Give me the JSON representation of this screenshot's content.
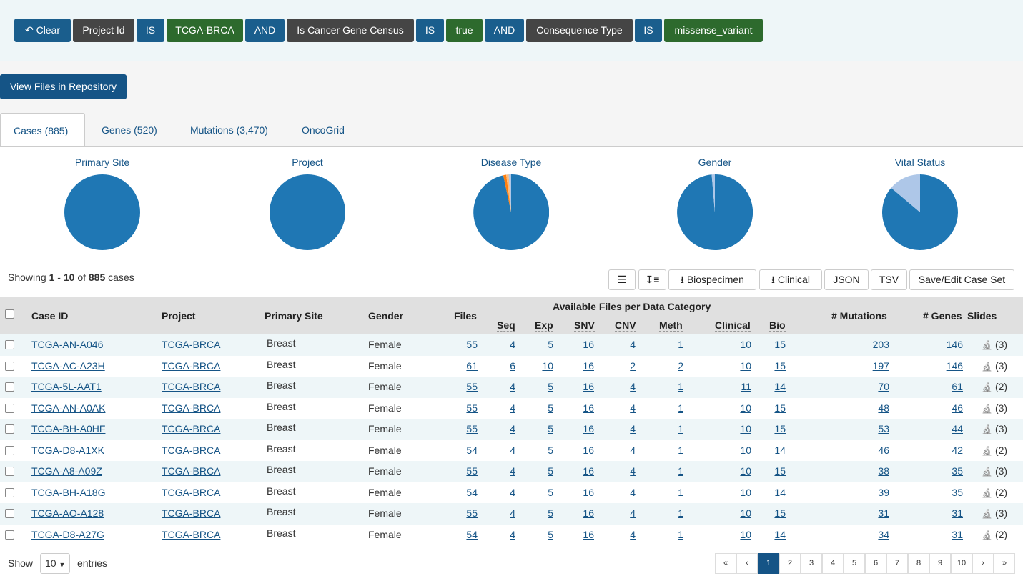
{
  "filters": {
    "clear_label": "Clear",
    "chips": [
      {
        "text": "Project Id",
        "kind": "field"
      },
      {
        "text": "IS",
        "kind": "op"
      },
      {
        "text": "TCGA-BRCA",
        "kind": "val"
      },
      {
        "text": "AND",
        "kind": "op"
      },
      {
        "text": "Is Cancer Gene Census",
        "kind": "field"
      },
      {
        "text": "IS",
        "kind": "op"
      },
      {
        "text": "true",
        "kind": "val"
      },
      {
        "text": "AND",
        "kind": "op"
      },
      {
        "text": "Consequence Type",
        "kind": "field"
      },
      {
        "text": "IS",
        "kind": "op"
      },
      {
        "text": "missense_variant",
        "kind": "val"
      }
    ]
  },
  "view_files_label": "View Files in Repository",
  "tabs": [
    "Cases (885)",
    "Genes (520)",
    "Mutations (3,470)",
    "OncoGrid"
  ],
  "pies": [
    "Primary Site",
    "Project",
    "Disease Type",
    "Gender",
    "Vital Status"
  ],
  "showing": {
    "prefix": "Showing",
    "from": "1",
    "sep": "-",
    "to": "10",
    "of": "of",
    "total": "885",
    "suffix": "cases"
  },
  "toolbar": {
    "biospecimen": "Biospecimen",
    "clinical": "Clinical",
    "json": "JSON",
    "tsv": "TSV",
    "save": "Save/Edit Case Set"
  },
  "table": {
    "group_header": "Available Files per Data Category",
    "headers": {
      "case_id": "Case ID",
      "project": "Project",
      "primary_site": "Primary Site",
      "gender": "Gender",
      "files": "Files",
      "seq": "Seq",
      "exp": "Exp",
      "snv": "SNV",
      "cnv": "CNV",
      "meth": "Meth",
      "clinical": "Clinical",
      "bio": "Bio",
      "mutations": "# Mutations",
      "genes": "# Genes",
      "slides": "Slides"
    },
    "rows": [
      {
        "id": "TCGA-AN-A046",
        "project": "TCGA-BRCA",
        "site": "Breast",
        "gender": "Female",
        "files": "55",
        "seq": "4",
        "exp": "5",
        "snv": "16",
        "cnv": "4",
        "meth": "1",
        "clinical": "10",
        "bio": "15",
        "mut": "203",
        "genes": "146",
        "slides": "(3)"
      },
      {
        "id": "TCGA-AC-A23H",
        "project": "TCGA-BRCA",
        "site": "Breast",
        "gender": "Female",
        "files": "61",
        "seq": "6",
        "exp": "10",
        "snv": "16",
        "cnv": "2",
        "meth": "2",
        "clinical": "10",
        "bio": "15",
        "mut": "197",
        "genes": "146",
        "slides": "(3)"
      },
      {
        "id": "TCGA-5L-AAT1",
        "project": "TCGA-BRCA",
        "site": "Breast",
        "gender": "Female",
        "files": "55",
        "seq": "4",
        "exp": "5",
        "snv": "16",
        "cnv": "4",
        "meth": "1",
        "clinical": "11",
        "bio": "14",
        "mut": "70",
        "genes": "61",
        "slides": "(2)"
      },
      {
        "id": "TCGA-AN-A0AK",
        "project": "TCGA-BRCA",
        "site": "Breast",
        "gender": "Female",
        "files": "55",
        "seq": "4",
        "exp": "5",
        "snv": "16",
        "cnv": "4",
        "meth": "1",
        "clinical": "10",
        "bio": "15",
        "mut": "48",
        "genes": "46",
        "slides": "(3)"
      },
      {
        "id": "TCGA-BH-A0HF",
        "project": "TCGA-BRCA",
        "site": "Breast",
        "gender": "Female",
        "files": "55",
        "seq": "4",
        "exp": "5",
        "snv": "16",
        "cnv": "4",
        "meth": "1",
        "clinical": "10",
        "bio": "15",
        "mut": "53",
        "genes": "44",
        "slides": "(3)"
      },
      {
        "id": "TCGA-D8-A1XK",
        "project": "TCGA-BRCA",
        "site": "Breast",
        "gender": "Female",
        "files": "54",
        "seq": "4",
        "exp": "5",
        "snv": "16",
        "cnv": "4",
        "meth": "1",
        "clinical": "10",
        "bio": "14",
        "mut": "46",
        "genes": "42",
        "slides": "(2)"
      },
      {
        "id": "TCGA-A8-A09Z",
        "project": "TCGA-BRCA",
        "site": "Breast",
        "gender": "Female",
        "files": "55",
        "seq": "4",
        "exp": "5",
        "snv": "16",
        "cnv": "4",
        "meth": "1",
        "clinical": "10",
        "bio": "15",
        "mut": "38",
        "genes": "35",
        "slides": "(3)"
      },
      {
        "id": "TCGA-BH-A18G",
        "project": "TCGA-BRCA",
        "site": "Breast",
        "gender": "Female",
        "files": "54",
        "seq": "4",
        "exp": "5",
        "snv": "16",
        "cnv": "4",
        "meth": "1",
        "clinical": "10",
        "bio": "14",
        "mut": "39",
        "genes": "35",
        "slides": "(2)"
      },
      {
        "id": "TCGA-AO-A128",
        "project": "TCGA-BRCA",
        "site": "Breast",
        "gender": "Female",
        "files": "55",
        "seq": "4",
        "exp": "5",
        "snv": "16",
        "cnv": "4",
        "meth": "1",
        "clinical": "10",
        "bio": "15",
        "mut": "31",
        "genes": "31",
        "slides": "(3)"
      },
      {
        "id": "TCGA-D8-A27G",
        "project": "TCGA-BRCA",
        "site": "Breast",
        "gender": "Female",
        "files": "54",
        "seq": "4",
        "exp": "5",
        "snv": "16",
        "cnv": "4",
        "meth": "1",
        "clinical": "10",
        "bio": "14",
        "mut": "34",
        "genes": "31",
        "slides": "(2)"
      }
    ]
  },
  "footer": {
    "show": "Show",
    "entries_value": "10",
    "entries": "entries"
  },
  "pagination": [
    "«",
    "‹",
    "1",
    "2",
    "3",
    "4",
    "5",
    "6",
    "7",
    "8",
    "9",
    "10",
    "›",
    "»"
  ],
  "colors": {
    "primary": "#155486",
    "pie_main": "#1f77b4",
    "pie_light": "#aec7e8",
    "pie_orange": "#ff7f0e",
    "pie_orange_light": "#ffbb78"
  }
}
